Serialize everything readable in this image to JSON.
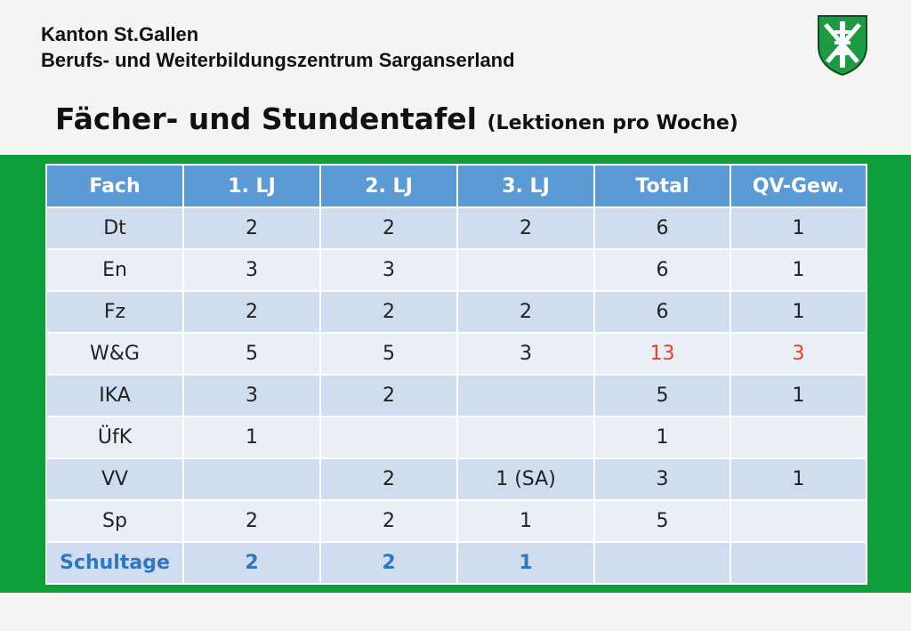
{
  "header": {
    "line1": "Kanton St.Gallen",
    "line2": "Berufs- und Weiterbildungszentrum Sarganserland"
  },
  "title": {
    "main": "Fächer- und Stundentafel",
    "sub": "(Lektionen pro Woche)"
  },
  "colors": {
    "band_green": "#0f9e3a",
    "header_blue": "#5b9bd5",
    "highlight_red": "#e8401c",
    "total_blue": "#2e78c2"
  },
  "table": {
    "headers": [
      "Fach",
      "1. LJ",
      "2. LJ",
      "3. LJ",
      "Total",
      "QV-Gew."
    ],
    "rows": [
      [
        "Dt",
        "2",
        "2",
        "2",
        "6",
        "1"
      ],
      [
        "En",
        "3",
        "3",
        "",
        "6",
        "1"
      ],
      [
        "Fz",
        "2",
        "2",
        "2",
        "6",
        "1"
      ],
      [
        "W&G",
        "5",
        "5",
        "3",
        "13",
        "3"
      ],
      [
        "IKA",
        "3",
        "2",
        "",
        "5",
        "1"
      ],
      [
        "ÜfK",
        "1",
        "",
        "",
        "1",
        ""
      ],
      [
        "VV",
        "",
        "2",
        "1 (SA)",
        "3",
        "1"
      ],
      [
        "Sp",
        "2",
        "2",
        "1",
        "5",
        ""
      ]
    ],
    "summary": [
      "Schultage",
      "2",
      "2",
      "1",
      "",
      ""
    ]
  }
}
